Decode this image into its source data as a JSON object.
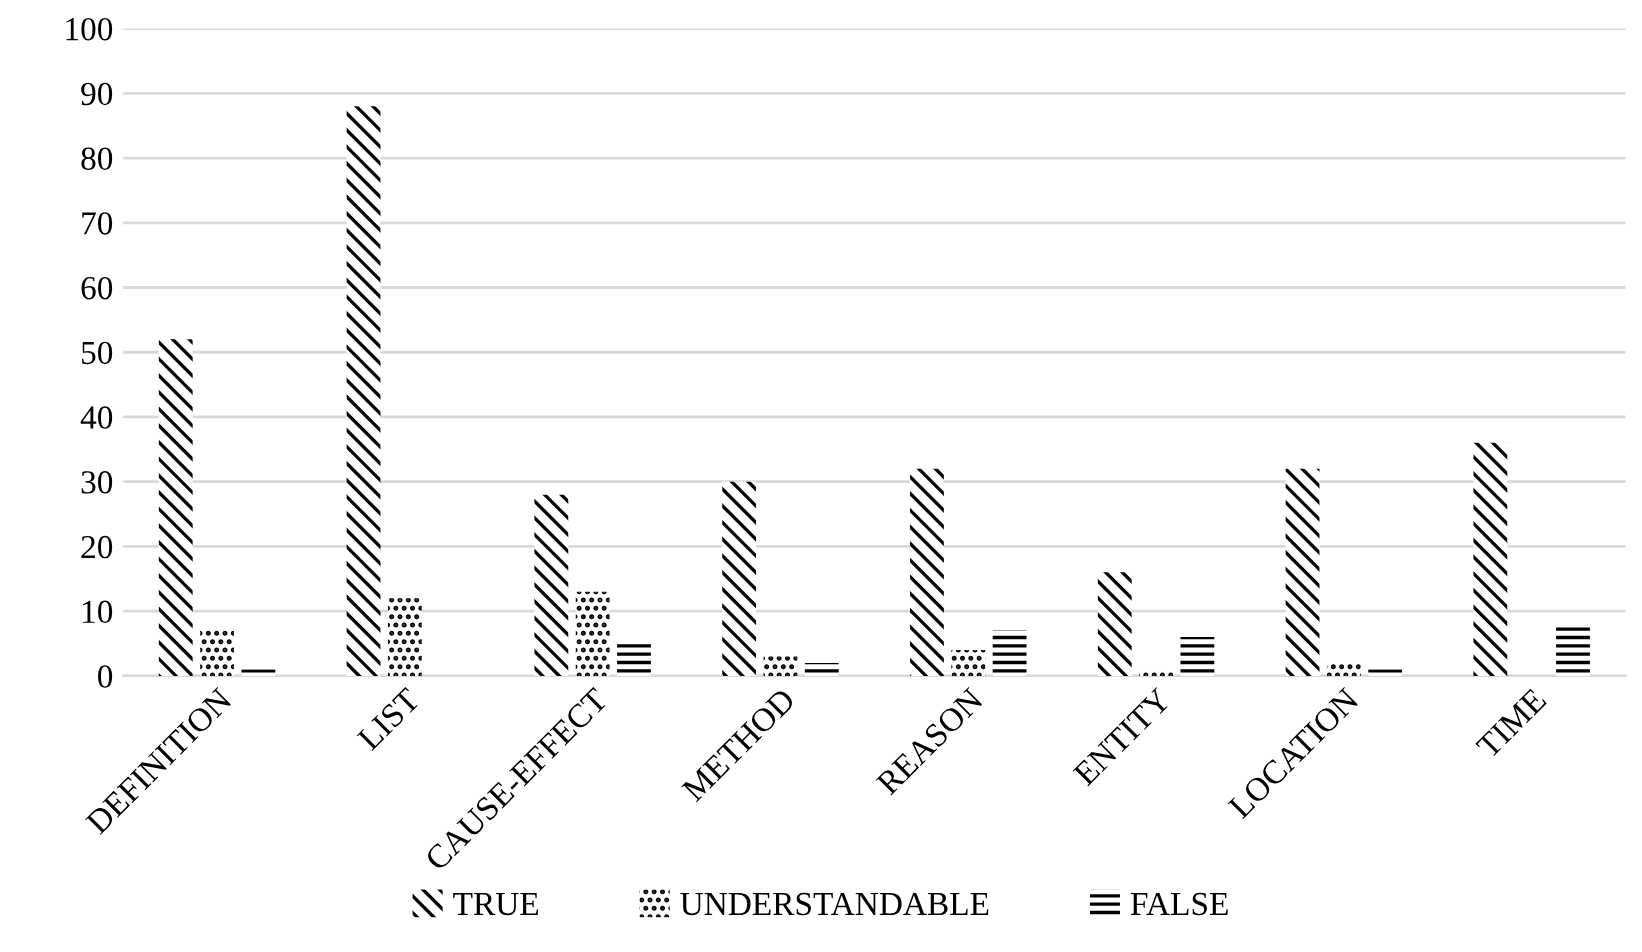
{
  "chart_data": {
    "type": "bar",
    "categories": [
      "DEFINITION",
      "LIST",
      "CAUSE-EFFECT",
      "METHOD",
      "REASON",
      "ENTITY",
      "LOCATION",
      "TIME"
    ],
    "series": [
      {
        "name": "TRUE",
        "color": "#000000",
        "values": [
          52,
          88,
          28,
          30,
          32,
          16,
          32,
          36
        ]
      },
      {
        "name": "UNDERSTANDABLE",
        "color": "#000000",
        "values": [
          7,
          12,
          13,
          3,
          4,
          1,
          2,
          0
        ]
      },
      {
        "name": "FALSE",
        "color": "#000000",
        "values": [
          1,
          0,
          5,
          2,
          7,
          6,
          1,
          8
        ]
      }
    ],
    "ylim": [
      0,
      100
    ],
    "yticks": [
      0,
      10,
      20,
      30,
      40,
      50,
      60,
      70,
      80,
      90,
      100
    ],
    "grid": "y",
    "legend": "bottom"
  }
}
